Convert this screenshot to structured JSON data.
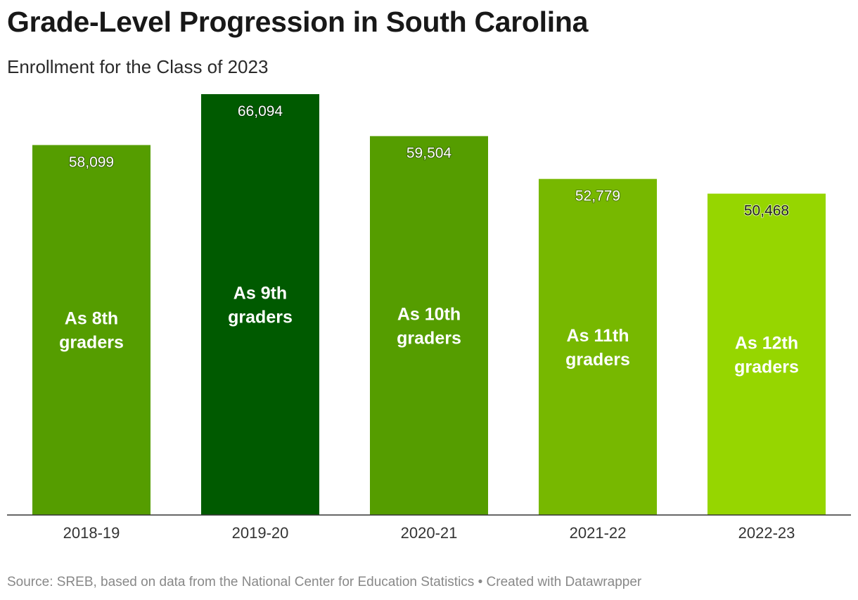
{
  "title": "Grade-Level Progression in South Carolina",
  "subtitle": "Enrollment for the Class of 2023",
  "footer": {
    "source": "Source: SREB, based on data from the National Center for Education Statistics",
    "separator": "•",
    "credit": "Created with Datawrapper"
  },
  "chart_data": {
    "type": "bar",
    "title": "Grade-Level Progression in South Carolina",
    "subtitle": "Enrollment for the Class of 2023",
    "xlabel": "",
    "ylabel": "",
    "ylim": [
      0,
      66094
    ],
    "grid": false,
    "legend": "none",
    "categories": [
      "2018-19",
      "2019-20",
      "2020-21",
      "2021-22",
      "2022-23"
    ],
    "values": [
      58099,
      66094,
      59504,
      52779,
      50468
    ],
    "value_labels": [
      "58,099",
      "66,094",
      "59,504",
      "52,779",
      "50,468"
    ],
    "bar_annotations": [
      [
        "As 8th",
        "graders"
      ],
      [
        "As 9th",
        "graders"
      ],
      [
        "As 10th",
        "graders"
      ],
      [
        "As 11th",
        "graders"
      ],
      [
        "As 12th",
        "graders"
      ]
    ],
    "colors": [
      "#559d00",
      "#005a00",
      "#559d00",
      "#77b800",
      "#96d600"
    ],
    "value_label_colors": [
      "#ffffff",
      "#ffffff",
      "#ffffff",
      "#ffffff",
      "#222222"
    ],
    "axis_color": "#333333"
  }
}
